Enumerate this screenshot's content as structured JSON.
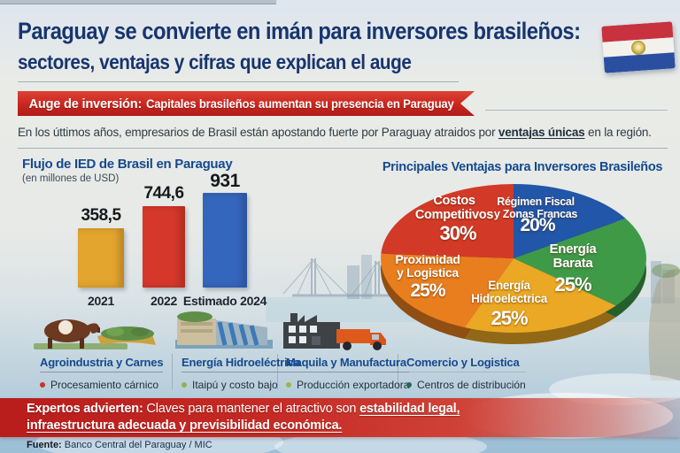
{
  "header": {
    "title_line1": "Paraguay se convierte en imán para inversores brasileños:",
    "title_line2": "sectores, ventajas y cifras que explican el auge",
    "flag": {
      "name": "paraguay-flag",
      "red": "#c8313e",
      "white": "#f2f1ec",
      "blue": "#2b4fa0"
    }
  },
  "ribbon": {
    "lead": "Auge de inversión:",
    "text": "Capitales brasileños aumentan su presencia en Paraguay"
  },
  "intro": {
    "pre": "En los úttimos años, empresarios de Brasil están apostando fuerte por Paraguay atraidos por ",
    "highlight": "ventajas únicas",
    "post": " en la región."
  },
  "chart_data": [
    {
      "type": "bar",
      "title": "Flujo de IED de Brasil en Paraguay",
      "subtitle": "(en millones de USD)",
      "categories": [
        "2021",
        "2022",
        "Estimado 2024"
      ],
      "values": [
        358.5,
        744.6,
        931
      ],
      "value_labels": [
        "358,5",
        "744,6",
        "931"
      ],
      "colors": [
        "#e3a52d",
        "#d5382a",
        "#3566bd"
      ],
      "ylabel": "millones de USD",
      "grid": "horizontal faint lines"
    },
    {
      "type": "pie",
      "title": "Principales Ventajas para Inversores Brasileños",
      "slices": [
        {
          "label": "Costos Competitivos",
          "value": 30,
          "pct_label": "30%",
          "color": "#d23a27"
        },
        {
          "label": "Régimen Fiscal y Zonas Francas",
          "value": 20,
          "pct_label": "20%",
          "color": "#2156a8"
        },
        {
          "label": "Energía Barata",
          "value": 25,
          "pct_label": "25%",
          "color": "#3f9a47"
        },
        {
          "label": "Energía Hidroelectrica",
          "value": 25,
          "pct_label": "25%",
          "color": "#eaa824"
        },
        {
          "label": "Proximidad y Logistica",
          "value": 25,
          "pct_label": "25%",
          "color": "#e97e1f"
        }
      ],
      "legend": "labels inside slices"
    }
  ],
  "sectors": [
    {
      "title": "Agroindustria y Carnes",
      "bullet": "Procesamiento cárnico",
      "dot": "#c43527",
      "icon": "cow-icon"
    },
    {
      "title": "Energía Hidroeléctrica",
      "bullet": "Itaipú y costo bajo",
      "dot": "#93b04c",
      "icon": "dam-icon"
    },
    {
      "title": "Maquila y Manufactura",
      "bullet": "Producción exportadora",
      "dot": "#9fb44a",
      "icon": "factory-truck-icon"
    },
    {
      "title": "Comercio y Logistica",
      "bullet": "Centros de distribución",
      "dot": "#1e6b52",
      "icon": ""
    }
  ],
  "warning": {
    "lead": "Expertos advierten:",
    "mid": " Claves para mantener el atractivo son ",
    "strong1": "estabilidad legal,",
    "line2": "infraestructura adecuada y previsibilidad económica."
  },
  "footer": {
    "label": "Fuente:",
    "text": "Banco Central del Paraguay / MIC"
  },
  "colors": {
    "accent_red": "#c5231f",
    "navy_title": "#17356e",
    "section_blue": "#15498f"
  }
}
